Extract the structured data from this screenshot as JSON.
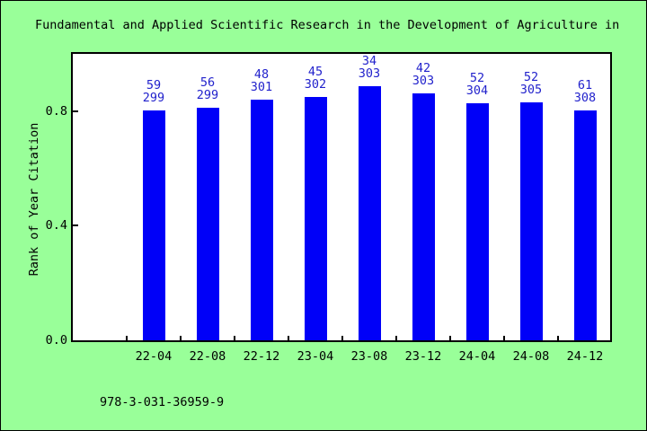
{
  "window": {
    "background": "#99ff99",
    "border_color": "#000000"
  },
  "chart_data": {
    "type": "bar",
    "title": "Fundamental and Applied Scientific Research in the Development of Agriculture in",
    "ylabel": "Rank of Year Citation",
    "xlabel": "",
    "footer": "978-3-031-36959-9",
    "ylim": [
      0.0,
      1.0
    ],
    "yticks": [
      "0.0",
      "0.4",
      "0.8"
    ],
    "grid": false,
    "legend": "none",
    "categories": [
      "22-04",
      "22-08",
      "22-12",
      "23-04",
      "23-08",
      "23-12",
      "24-04",
      "24-08",
      "24-12"
    ],
    "bars": [
      {
        "category": "22-04",
        "rank": "59",
        "total": "299",
        "value": 0.803
      },
      {
        "category": "22-08",
        "rank": "56",
        "total": "299",
        "value": 0.813
      },
      {
        "category": "22-12",
        "rank": "48",
        "total": "301",
        "value": 0.841
      },
      {
        "category": "23-04",
        "rank": "45",
        "total": "302",
        "value": 0.851
      },
      {
        "category": "23-08",
        "rank": "34",
        "total": "303",
        "value": 0.888
      },
      {
        "category": "23-12",
        "rank": "42",
        "total": "303",
        "value": 0.861
      },
      {
        "category": "24-04",
        "rank": "52",
        "total": "304",
        "value": 0.829
      },
      {
        "category": "24-08",
        "rank": "52",
        "total": "305",
        "value": 0.83
      },
      {
        "category": "24-12",
        "rank": "61",
        "total": "308",
        "value": 0.802
      }
    ],
    "colors": {
      "bar": "#0000f8",
      "bar_label": "#2222cc",
      "axis": "#000000",
      "plot_background": "#ffffff",
      "canvas_background": "#99ff99"
    }
  }
}
